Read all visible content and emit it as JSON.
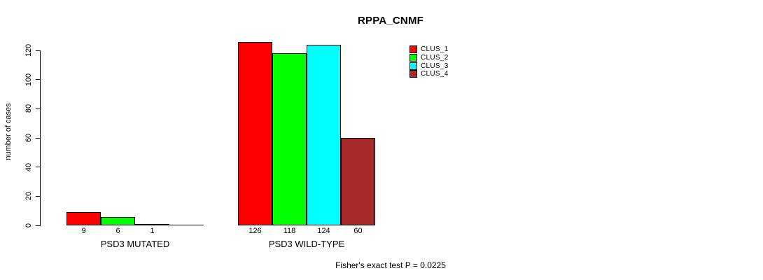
{
  "chart_data": {
    "type": "bar",
    "title": "RPPA_CNMF",
    "ylabel": "number of cases",
    "xlabel": "",
    "annotation": "Fisher's exact test P = 0.0225",
    "ylim": [
      0,
      130
    ],
    "y_ticks": [
      0,
      20,
      40,
      60,
      80,
      100,
      120
    ],
    "grid": false,
    "legend_position": "top-right",
    "series": [
      {
        "name": "CLUS_1",
        "color": "#ff0000"
      },
      {
        "name": "CLUS_2",
        "color": "#00ff00"
      },
      {
        "name": "CLUS_3",
        "color": "#00ffff"
      },
      {
        "name": "CLUS_4",
        "color": "#a52a2a"
      }
    ],
    "groups": [
      {
        "label": "PSD3 MUTATED",
        "values": [
          9,
          6,
          1,
          0
        ],
        "bar_labels": [
          "9",
          "6",
          "1",
          ""
        ]
      },
      {
        "label": "PSD3 WILD-TYPE",
        "values": [
          126,
          118,
          124,
          60
        ],
        "bar_labels": [
          "126",
          "118",
          "124",
          "60"
        ]
      }
    ],
    "axis_color": "#000000",
    "background_color": "#ffffff"
  }
}
